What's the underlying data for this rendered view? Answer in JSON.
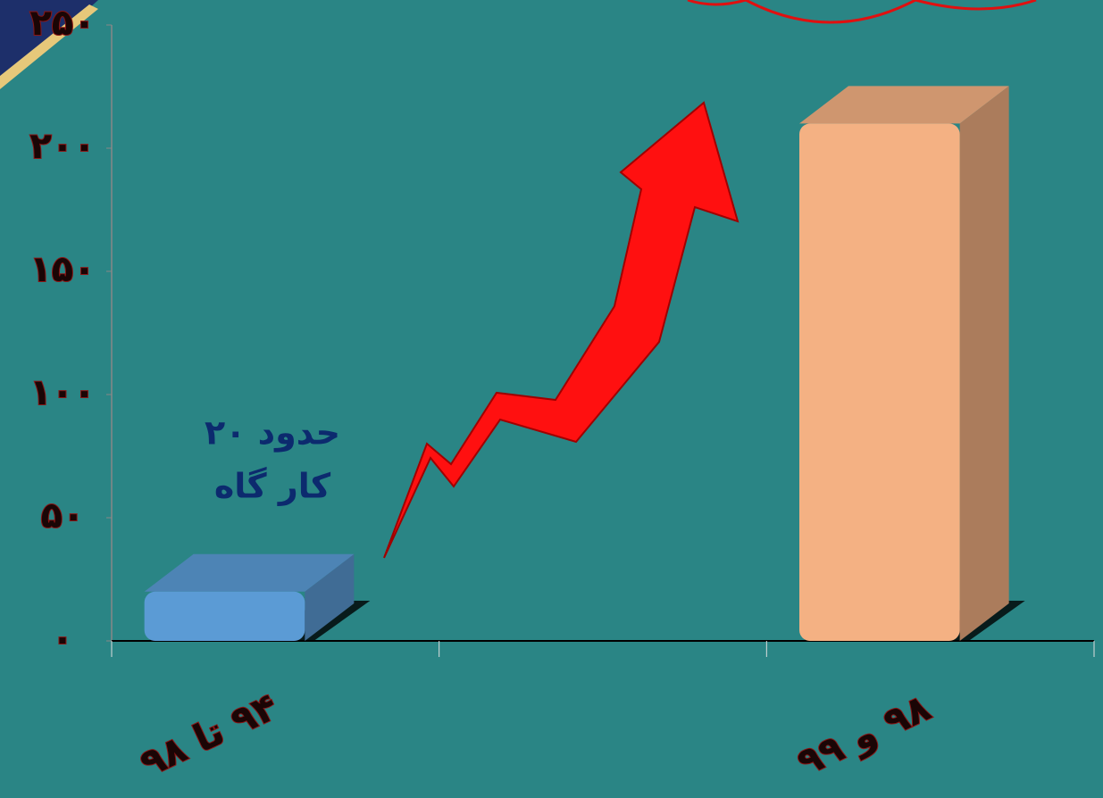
{
  "chart_data": {
    "type": "bar",
    "categories": [
      "۹۴ تا ۹۸",
      null,
      "۹۸ و ۹۹"
    ],
    "values": [
      20,
      null,
      210
    ],
    "colors": [
      "#5b9bd5",
      null,
      "#f4b183"
    ],
    "ylim": [
      0,
      250
    ],
    "yticks": [
      {
        "value": 0,
        "label": "۰"
      },
      {
        "value": 50,
        "label": "۵۰"
      },
      {
        "value": 100,
        "label": "۱۰۰"
      },
      {
        "value": 150,
        "label": "۱۵۰"
      },
      {
        "value": 200,
        "label": "۲۰۰"
      },
      {
        "value": 250,
        "label": "۲۵۰"
      }
    ],
    "annotation": [
      "حدود ۲۰",
      "کار گاه"
    ]
  }
}
